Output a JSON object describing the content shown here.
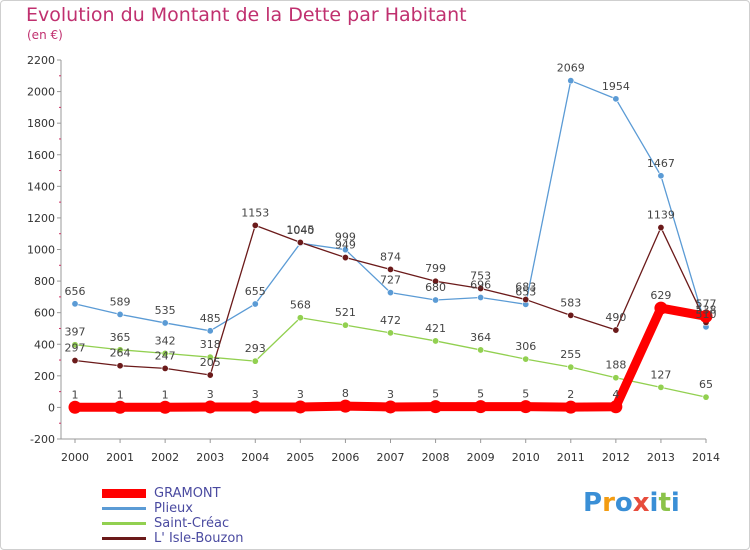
{
  "header": {
    "title": "Evolution du Montant de la Dette par Habitant",
    "unit": "(en €)"
  },
  "chart_data": {
    "type": "line",
    "title": "Evolution du Montant de la Dette par Habitant",
    "ylabel": "(en €)",
    "xlabel": "",
    "ylim": [
      -200,
      2200
    ],
    "ytick_step": 200,
    "grid": false,
    "legend_position": "bottom-left",
    "categories": [
      "2000",
      "2001",
      "2002",
      "2003",
      "2004",
      "2005",
      "2006",
      "2007",
      "2008",
      "2009",
      "2010",
      "2011",
      "2012",
      "2013",
      "2014"
    ],
    "series": [
      {
        "name": "GRAMONT",
        "color": "#ff0000",
        "values": [
          1,
          1,
          1,
          3,
          3,
          3,
          8,
          3,
          5,
          5,
          5,
          2,
          4,
          629,
          577
        ]
      },
      {
        "name": "Plieux",
        "color": "#5b9bd5",
        "values": [
          656,
          589,
          535,
          485,
          655,
          1040,
          999,
          727,
          680,
          696,
          653,
          2069,
          1954,
          1467,
          510
        ]
      },
      {
        "name": "Saint-Créac",
        "color": "#92d050",
        "values": [
          397,
          365,
          342,
          318,
          293,
          568,
          521,
          472,
          421,
          364,
          306,
          255,
          188,
          127,
          65
        ]
      },
      {
        "name": "L' Isle-Bouzon",
        "color": "#6b1a1a",
        "values": [
          297,
          264,
          247,
          205,
          1153,
          1045,
          949,
          874,
          799,
          753,
          683,
          583,
          490,
          1139,
          538
        ]
      }
    ],
    "labels": {
      "GRAMONT": [
        "1",
        "1",
        "1",
        "3",
        "3",
        "3",
        "8",
        "3",
        "5",
        "5",
        "5",
        "2",
        "4",
        "629",
        "577"
      ],
      "Plieux": [
        "656",
        "589",
        "535",
        "485",
        "655",
        "1040",
        "999",
        "727",
        "680",
        "696",
        "653",
        "2069",
        "1954",
        "1467",
        "510"
      ],
      "Saint-Créac": [
        "397",
        "365",
        "342",
        "318",
        "293",
        "568",
        "521",
        "472",
        "421",
        "364",
        "306",
        "255",
        "188",
        "127",
        "65"
      ],
      "L' Isle-Bouzon": [
        "297",
        "264",
        "247",
        "205",
        "1153",
        "1045",
        "949",
        "874",
        "799",
        "753",
        "683",
        "583",
        "490",
        "1139",
        "538"
      ]
    }
  },
  "logo": {
    "letters": [
      "P",
      "r",
      "o",
      "x",
      "i",
      "t",
      "i"
    ],
    "colors": [
      "#3a8fd6",
      "#f39c12",
      "#3a8fd6",
      "#e74c3c",
      "#3a8fd6",
      "#8bc34a",
      "#3a8fd6"
    ]
  }
}
